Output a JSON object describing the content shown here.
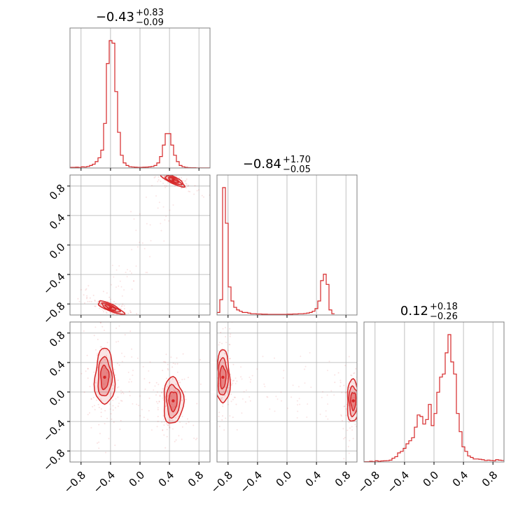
{
  "chart_data": {
    "type": "corner",
    "parameters": [
      "",
      "",
      ""
    ],
    "color": "#d62728",
    "grid": true,
    "titles": [
      {
        "value": "−0.43",
        "plus": "+0.83",
        "minus": "−0.09"
      },
      {
        "value": "−0.84",
        "plus": "+1.70",
        "minus": "−0.05"
      },
      {
        "value": "0.12",
        "plus": "+0.18",
        "minus": "−0.26"
      }
    ],
    "axis_range": [
      -0.95,
      0.95
    ],
    "tick_values": [
      -0.8,
      -0.4,
      0.0,
      0.4,
      0.8
    ],
    "tick_labels": [
      "−0.8",
      "−0.4",
      "0.0",
      "0.4",
      "0.8"
    ],
    "histograms": [
      {
        "param": 0,
        "bin_start": -0.95,
        "bin_width": 0.038,
        "counts": [
          0.5,
          0.5,
          0.6,
          0.4,
          0.9,
          0.8,
          1.2,
          2,
          3,
          5,
          8,
          14,
          35,
          82,
          100,
          98,
          60,
          28,
          10,
          4,
          2,
          1,
          0.8,
          0.6,
          0.5,
          0.5,
          0.6,
          0.7,
          0.9,
          1.2,
          2,
          4,
          9,
          18,
          27,
          27,
          18,
          10,
          5,
          2,
          1,
          0.5,
          0.3,
          0.2,
          0.2,
          0.1,
          0.1,
          0.1,
          0.1,
          0.1
        ]
      },
      {
        "param": 1,
        "bin_start": -0.95,
        "bin_width": 0.038,
        "counts": [
          2,
          12,
          100,
          72,
          22,
          11,
          6,
          4,
          3,
          2,
          2,
          1.5,
          1,
          1,
          0.8,
          0.8,
          0.6,
          0.6,
          0.5,
          0.5,
          0.5,
          0.5,
          0.5,
          0.5,
          0.5,
          0.6,
          0.6,
          0.8,
          0.8,
          1,
          1,
          1.2,
          1.5,
          2,
          3,
          5,
          11,
          27,
          32,
          24,
          4,
          1
        ]
      },
      {
        "param": 2,
        "bin_start": -0.95,
        "bin_width": 0.038,
        "counts": [
          0.2,
          0.2,
          0.5,
          0.3,
          0.8,
          0.5,
          0.7,
          0.8,
          0.9,
          1.2,
          2.5,
          3.5,
          6,
          7,
          9,
          12,
          14,
          16,
          23,
          31,
          30,
          25,
          28,
          38,
          24,
          32,
          46,
          56,
          58,
          72,
          84,
          66,
          58,
          32,
          20,
          10,
          7,
          4,
          3,
          2,
          2,
          1.8,
          1.5,
          1,
          1.2,
          1,
          0.8,
          1.5,
          1.2,
          1
        ]
      }
    ],
    "scatter_pairs": [
      {
        "x_param": 0,
        "y_param": 1,
        "modes": [
          [
            0.45,
            0.88
          ],
          [
            -0.4,
            -0.85
          ]
        ]
      },
      {
        "x_param": 0,
        "y_param": 2,
        "modes": [
          [
            -0.48,
            0.2
          ],
          [
            0.45,
            -0.12
          ]
        ]
      },
      {
        "x_param": 1,
        "y_param": 2,
        "modes": [
          [
            -0.87,
            0.2
          ],
          [
            0.9,
            -0.12
          ]
        ]
      }
    ]
  }
}
